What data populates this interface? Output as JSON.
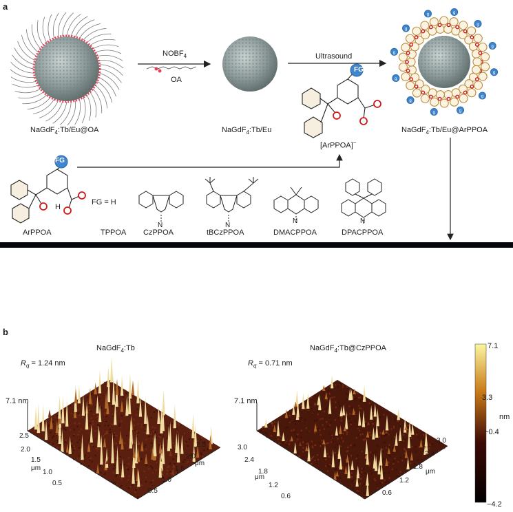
{
  "panel_a": {
    "letter": "a",
    "np_oa_label": "NaGdF",
    "np_oa_sub": "4",
    "np_oa_suffix": ":Tb/Eu@OA",
    "reagent_top": "NOBF",
    "reagent_top_sub": "4",
    "reagent_bottom": "OA",
    "np_bare_label": "NaGdF",
    "np_bare_sub": "4",
    "np_bare_suffix": ":Tb/Eu",
    "ultrasound": "Ultrasound",
    "ligand_anion": "[ArPPOA]",
    "ligand_anion_sup": "−",
    "np_final_label": "NaGdF",
    "np_final_sub": "4",
    "np_final_suffix": ":Tb/Eu@ArPPOA",
    "fg_tag": "FG",
    "fg_def": "FG = H",
    "ligands": [
      "ArPPOA",
      "TPPOA",
      "CzPPOA",
      "tBCzPPOA",
      "DMACPPOA",
      "DPACPPOA"
    ],
    "atom_p": "P",
    "atom_o": "O",
    "atom_oh_h": "H",
    "atom_n": "N",
    "fg_sphere": "g",
    "vial_colors": [
      "#2a36c8",
      "#1fb7a4",
      "#3ccf4a",
      "#46e23c",
      "#47a8ff",
      "#58c6ff",
      "#8ae4d2",
      "#63d0ff",
      "#3a8cff",
      "#7ee05a",
      "#2a2a9a",
      "#c23ad0",
      "#ff3340",
      "#ff2a3a",
      "#3a78ff",
      "#e8e8ff",
      "#ff7ae8",
      "#6a6aff",
      "#b08aff",
      "#ff6a9a"
    ]
  },
  "panel_b": {
    "letter": "b",
    "left_title": "NaGdF",
    "left_title_sub": "4",
    "left_title_suffix": ":Tb",
    "left_rq_sym": "R",
    "left_rq_sub": "q",
    "left_rq_val": " = 1.24 nm",
    "left_z": "7.1 nm",
    "left_x_ticks": [
      "0.5",
      "1.0",
      "1.5",
      "2.0",
      "2.5"
    ],
    "left_y_ticks": [
      "0.5",
      "1.0",
      "1.5",
      "2.0",
      "2.5"
    ],
    "right_title": "NaGdF",
    "right_title_sub": "4",
    "right_title_suffix": ":Tb@CzPPOA",
    "right_rq_sym": "R",
    "right_rq_sub": "q",
    "right_rq_val": " = 0.71 nm",
    "right_z": "7.1 nm",
    "right_x_ticks": [
      "0.6",
      "1.2",
      "1.8",
      "2.4",
      "3.0"
    ],
    "right_y_ticks": [
      "0.6",
      "1.2",
      "1.8",
      "2.4",
      "3.0"
    ],
    "unit_um": "μm",
    "colorbar_ticks": [
      "7.1",
      "3.3",
      "−0.4",
      "−4.2"
    ],
    "colorbar_unit": "nm",
    "colorbar_colors": [
      "#fcf6a0",
      "#c97b18",
      "#3d0a05",
      "#000000"
    ]
  }
}
